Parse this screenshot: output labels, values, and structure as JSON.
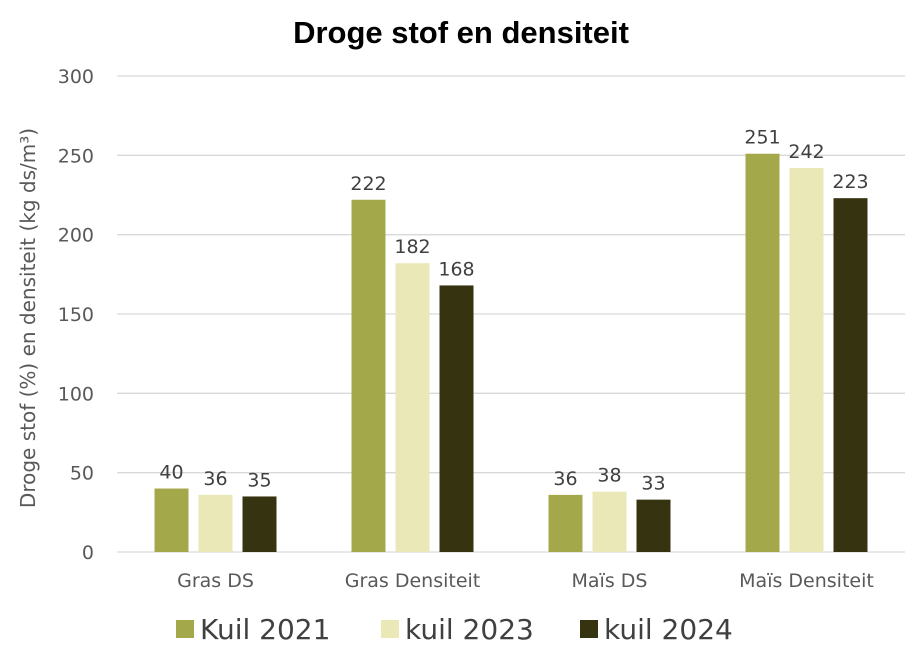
{
  "chart_data": {
    "type": "bar",
    "title": "Droge stof en densiteit",
    "ylabel": "Droge stof (%) en densiteit (kg ds/m³)",
    "xlabel": "",
    "categories": [
      "Gras DS",
      "Gras Densiteit",
      "Maïs DS",
      "Maïs Densiteit"
    ],
    "series": [
      {
        "name": "Kuil 2021",
        "color": "#a3a84b",
        "values": [
          40,
          222,
          36,
          251
        ]
      },
      {
        "name": "kuil 2023",
        "color": "#e9e8b6",
        "values": [
          36,
          182,
          38,
          242
        ]
      },
      {
        "name": "kuil 2024",
        "color": "#363311",
        "values": [
          35,
          168,
          33,
          223
        ]
      }
    ],
    "ylim": [
      0,
      300
    ],
    "yticks": [
      "0",
      "50",
      "100",
      "150",
      "200",
      "250",
      "300"
    ],
    "grid": true,
    "legend_position": "bottom",
    "data_labels": true
  }
}
